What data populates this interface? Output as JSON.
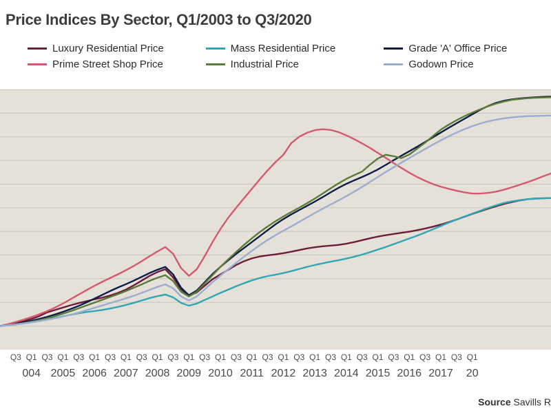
{
  "title": "Price Indices By Sector, Q1/2003 to Q3/2020",
  "source_label": "Source",
  "source_value": "Savills R",
  "chart": {
    "type": "line",
    "background_color": "#e6e1d8",
    "grid_color": "#c8c2b7",
    "grid_stroke_width": 1,
    "ylim": [
      0,
      1100
    ],
    "ytick_step": 100,
    "line_width": 2.4,
    "title_fontsize": 22,
    "title_color": "#3d3d3d",
    "legend_fontsize": 15,
    "xaxis_fontsize_quarter": 12,
    "xaxis_fontsize_year": 16,
    "x_labels_quarters": [
      "Q3",
      "Q1",
      "Q3",
      "Q1",
      "Q3",
      "Q1",
      "Q3",
      "Q1",
      "Q3",
      "Q1",
      "Q3",
      "Q1",
      "Q3",
      "Q1",
      "Q3",
      "Q1",
      "Q3",
      "Q1",
      "Q3",
      "Q1",
      "Q3",
      "Q1",
      "Q3",
      "Q1",
      "Q3",
      "Q1",
      "Q3",
      "Q1",
      "Q3",
      "Q1"
    ],
    "x_labels_years": [
      "004",
      "2005",
      "2006",
      "2007",
      "2008",
      "2009",
      "2010",
      "2011",
      "2012",
      "2013",
      "2014",
      "2015",
      "2016",
      "2017",
      "20"
    ],
    "x_n_points": 71,
    "series": [
      {
        "name": "Luxury Residential Price",
        "color": "#6b1d3a",
        "values": [
          100,
          105,
          112,
          120,
          130,
          142,
          158,
          168,
          178,
          188,
          197,
          205,
          213,
          220,
          229,
          240,
          254,
          272,
          292,
          312,
          328,
          340,
          305,
          255,
          228,
          242,
          270,
          298,
          318,
          338,
          358,
          374,
          386,
          394,
          399,
          403,
          408,
          414,
          421,
          428,
          433,
          437,
          440,
          443,
          448,
          455,
          463,
          471,
          478,
          484,
          489,
          494,
          499,
          505,
          512,
          520,
          529,
          539,
          550,
          562,
          574,
          585,
          596,
          606,
          616,
          624,
          631,
          636,
          639,
          640,
          641
        ]
      },
      {
        "name": "Mass Residential Price",
        "color": "#2ea7b5",
        "values": [
          100,
          103,
          107,
          111,
          116,
          121,
          127,
          134,
          141,
          148,
          154,
          159,
          163,
          168,
          174,
          181,
          189,
          198,
          208,
          218,
          226,
          233,
          221,
          198,
          186,
          195,
          210,
          225,
          240,
          254,
          268,
          281,
          293,
          303,
          311,
          317,
          324,
          332,
          341,
          350,
          358,
          365,
          372,
          378,
          385,
          393,
          402,
          412,
          423,
          434,
          446,
          458,
          470,
          482,
          495,
          509,
          523,
          537,
          550,
          563,
          575,
          587,
          599,
          610,
          620,
          627,
          632,
          636,
          638,
          640,
          641
        ]
      },
      {
        "name": "Grade 'A' Office Price",
        "color": "#0b1d47",
        "values": [
          100,
          104,
          109,
          115,
          122,
          130,
          139,
          149,
          160,
          172,
          185,
          200,
          216,
          232,
          248,
          263,
          277,
          292,
          308,
          324,
          338,
          350,
          318,
          262,
          230,
          250,
          285,
          320,
          350,
          378,
          405,
          430,
          455,
          480,
          505,
          530,
          552,
          572,
          590,
          608,
          626,
          645,
          665,
          684,
          701,
          716,
          730,
          745,
          762,
          781,
          801,
          820,
          839,
          858,
          878,
          898,
          918,
          938,
          957,
          976,
          995,
          1014,
          1030,
          1043,
          1052,
          1058,
          1062,
          1065,
          1067,
          1069,
          1070
        ]
      },
      {
        "name": "Prime Street Shop Price",
        "color": "#d2596f",
        "values": [
          100,
          108,
          117,
          127,
          138,
          150,
          163,
          178,
          195,
          214,
          233,
          252,
          270,
          287,
          303,
          319,
          336,
          354,
          374,
          395,
          415,
          434,
          405,
          345,
          312,
          340,
          395,
          455,
          510,
          558,
          600,
          640,
          680,
          720,
          758,
          793,
          824,
          873,
          900,
          917,
          928,
          932,
          929,
          920,
          906,
          890,
          872,
          853,
          832,
          811,
          789,
          768,
          748,
          730,
          714,
          700,
          689,
          680,
          672,
          665,
          660,
          660,
          663,
          668,
          676,
          686,
          697,
          708,
          720,
          733,
          745
        ]
      },
      {
        "name": "Industrial Price",
        "color": "#5a7a3a",
        "values": [
          100,
          103,
          107,
          112,
          118,
          125,
          133,
          142,
          152,
          163,
          175,
          187,
          199,
          211,
          223,
          235,
          248,
          262,
          276,
          291,
          304,
          315,
          290,
          245,
          225,
          245,
          280,
          315,
          350,
          382,
          413,
          443,
          471,
          497,
          521,
          543,
          563,
          582,
          600,
          619,
          639,
          660,
          682,
          703,
          722,
          738,
          753,
          782,
          808,
          824,
          818,
          810,
          825,
          850,
          875,
          903,
          930,
          951,
          970,
          987,
          1002,
          1016,
          1029,
          1040,
          1049,
          1056,
          1060,
          1063,
          1065,
          1066,
          1067
        ]
      },
      {
        "name": "Godown Price",
        "color": "#98add0",
        "values": [
          100,
          103,
          107,
          111,
          116,
          121,
          127,
          133,
          140,
          148,
          157,
          167,
          177,
          187,
          197,
          207,
          217,
          228,
          240,
          253,
          265,
          276,
          260,
          225,
          208,
          225,
          255,
          285,
          313,
          340,
          367,
          393,
          418,
          442,
          464,
          484,
          503,
          521,
          540,
          559,
          578,
          596,
          614,
          631,
          649,
          668,
          688,
          709,
          730,
          751,
          771,
          791,
          810,
          829,
          848,
          867,
          885,
          902,
          918,
          932,
          945,
          956,
          965,
          972,
          978,
          982,
          985,
          987,
          988,
          989,
          990
        ]
      }
    ]
  }
}
